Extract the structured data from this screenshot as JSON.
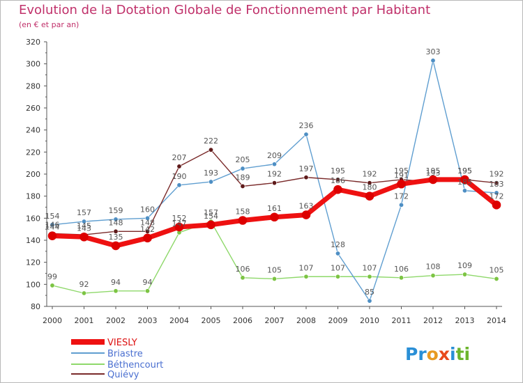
{
  "title": "Evolution de la Dotation Globale de Fonctionnement par Habitant",
  "subtitle": "(en € et par an)",
  "brand": {
    "text": "Proxiti",
    "letters": [
      "P",
      "r",
      "o",
      "x",
      "i",
      "t",
      "i"
    ],
    "colors": [
      "#2a8fd6",
      "#2a8fd6",
      "#e89a22",
      "#e84a1c",
      "#2a8fd6",
      "#6cb52d",
      "#6cb52d"
    ]
  },
  "chart_data": {
    "type": "line",
    "categories": [
      "2000",
      "2001",
      "2002",
      "2003",
      "2004",
      "2005",
      "2006",
      "2007",
      "2008",
      "2009",
      "2010",
      "2011",
      "2012",
      "2013",
      "2014"
    ],
    "ylim": [
      80,
      320
    ],
    "yticks": [
      "80",
      "100",
      "120",
      "140",
      "160",
      "180",
      "200",
      "220",
      "240",
      "260",
      "280",
      "300",
      "320"
    ],
    "grid": false,
    "legend_position": "bottom-left",
    "series": [
      {
        "name": "Béthencourt",
        "color": "#8ed86a",
        "marker": "#7cc443",
        "width": 1.4,
        "values": [
          99,
          92,
          94,
          94,
          147,
          157,
          106,
          105,
          107,
          107,
          107,
          106,
          108,
          109,
          105
        ],
        "labels": [
          "99",
          "92",
          "94",
          "94",
          "147",
          "157",
          "106",
          "105",
          "107",
          "107",
          "107",
          "106",
          "108",
          "109",
          "105"
        ]
      },
      {
        "name": "Briastre",
        "color": "#5f9ed0",
        "marker": "#4e8fc4",
        "width": 1.4,
        "values": [
          154,
          157,
          159,
          160,
          190,
          193,
          205,
          209,
          236,
          128,
          85,
          172,
          303,
          185,
          183
        ],
        "labels": [
          "154",
          "157",
          "159",
          "160",
          "190",
          "193",
          "205",
          "209",
          "236",
          "128",
          "85",
          "172",
          "303",
          "185",
          "183"
        ]
      },
      {
        "name": "Quiévy",
        "color": "#7a2a2a",
        "marker": "#5e1a1a",
        "width": 1.4,
        "values": [
          146,
          145,
          148,
          148,
          207,
          222,
          189,
          192,
          197,
          195,
          192,
          195,
          193,
          195,
          192
        ],
        "labels": [
          "146",
          "145",
          "148",
          "148",
          "207",
          "222",
          "189",
          "192",
          "197",
          "195",
          "192",
          "195",
          "193",
          "195",
          "192"
        ]
      },
      {
        "name": "VIESLY",
        "color": "#ee1111",
        "marker": "#dd0000",
        "width": 7,
        "values": [
          144,
          143,
          135,
          142,
          152,
          154,
          158,
          161,
          163,
          186,
          180,
          191,
          195,
          195,
          172
        ],
        "labels": [
          "144",
          "143",
          "135",
          "142",
          "152",
          "154",
          "158",
          "161",
          "163",
          "186",
          "180",
          "191",
          "195",
          "195",
          "172"
        ]
      }
    ],
    "legend": [
      "VIESLY",
      "Briastre",
      "Béthencourt",
      "Quiévy"
    ]
  }
}
